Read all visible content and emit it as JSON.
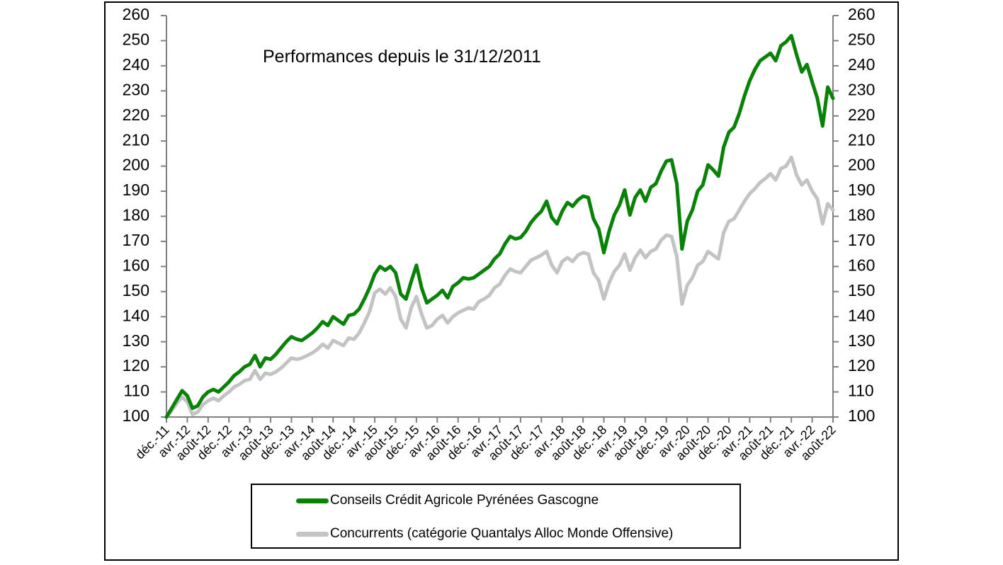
{
  "title": "Performances depuis le 31/12/2011",
  "colors": {
    "series1": "#078207",
    "series2": "#c3c3c3",
    "axis": "#808080",
    "text": "#000000",
    "frame_border": "#000000"
  },
  "chart_data": {
    "type": "line",
    "title": "Performances depuis le 31/12/2011",
    "xlabel": "",
    "ylabel": "",
    "ylim": [
      100,
      260
    ],
    "y_tick_step": 10,
    "grid": false,
    "legend_position": "bottom-box",
    "x_months_per_tick": 4,
    "x_tick_labels": [
      "déc.-11",
      "avr.-12",
      "août-12",
      "déc.-12",
      "avr.-13",
      "août-13",
      "déc.-13",
      "avr.-14",
      "août-14",
      "déc.-14",
      "avr.-15",
      "août-15",
      "déc.-15",
      "avr.-16",
      "août-16",
      "déc.-16",
      "avr.-17",
      "août-17",
      "déc.-17",
      "avr.-18",
      "août-18",
      "déc.-18",
      "avr.-19",
      "août-19",
      "déc.-19",
      "avr.-20",
      "août-20",
      "déc.-20",
      "avr.-21",
      "août-21",
      "déc.-21",
      "avr.-22",
      "août-22"
    ],
    "y_tick_labels": [
      100,
      110,
      120,
      130,
      140,
      150,
      160,
      170,
      180,
      190,
      200,
      210,
      220,
      230,
      240,
      250,
      260
    ],
    "series": [
      {
        "name": "Conseils Crédit Agricole Pyrénées Gascogne",
        "color": "#078207",
        "values": [
          100,
          103.5,
          107,
          110.5,
          108.5,
          103.5,
          104.5,
          108,
          110,
          111,
          110,
          112,
          114,
          116.5,
          118,
          120,
          121,
          124.5,
          120,
          123.5,
          123,
          125,
          127.5,
          130,
          132,
          131,
          130.5,
          132,
          133.5,
          135.5,
          138,
          136.5,
          140,
          138.5,
          137,
          140.5,
          141,
          143,
          147,
          151.5,
          157,
          160,
          158.5,
          160,
          157.5,
          149,
          147,
          154,
          160.5,
          151.5,
          145.5,
          147,
          148.5,
          150.5,
          147.5,
          152,
          153.5,
          155.5,
          155,
          155.5,
          157,
          158.5,
          160,
          163,
          165,
          169,
          172,
          171,
          171.5,
          174,
          177.5,
          180,
          182,
          186,
          179.5,
          177,
          182,
          185.5,
          184,
          186.5,
          188,
          187.5,
          179,
          175,
          165.5,
          174,
          180.5,
          184.5,
          190.5,
          180.5,
          187.5,
          190.5,
          186,
          191.5,
          193,
          198,
          202,
          202.5,
          193,
          167,
          178,
          182.5,
          190,
          192.5,
          200.5,
          198.5,
          196,
          207.5,
          213.5,
          215.5,
          221,
          228,
          234,
          238.5,
          242,
          243.5,
          245,
          242,
          248,
          249.5,
          252,
          244.5,
          237.5,
          240.5,
          233.5,
          227,
          216,
          231.5,
          227
        ]
      },
      {
        "name": "Concurrents (catégorie Quantalys Alloc Monde Offensive)",
        "color": "#c3c3c3",
        "values": [
          100,
          102.5,
          105.5,
          108,
          106,
          101,
          102,
          105,
          106.5,
          107.5,
          106.5,
          108.5,
          110,
          112,
          113,
          114.5,
          115,
          118.5,
          115,
          117.5,
          117,
          118,
          119.5,
          121.5,
          123.5,
          123,
          123.5,
          124.5,
          125.5,
          127,
          129,
          127.5,
          130.5,
          129.5,
          128.5,
          131.5,
          131,
          133.5,
          137.5,
          142,
          149.5,
          151,
          149,
          151.5,
          148,
          139,
          135.5,
          143.5,
          148,
          141,
          135.5,
          136.5,
          139,
          140.5,
          137.5,
          140,
          141.5,
          142.5,
          143.5,
          143,
          146,
          147,
          148.5,
          151.5,
          153,
          156.5,
          159,
          158,
          157.5,
          160,
          162.5,
          163.5,
          164.5,
          166,
          160.5,
          157.5,
          162,
          163.5,
          162,
          164.5,
          165.5,
          165,
          157.5,
          154.5,
          147,
          153.5,
          158,
          160.5,
          165,
          158.5,
          163.5,
          166.5,
          163.5,
          166,
          167,
          170.5,
          172.5,
          172,
          164,
          145,
          152.5,
          155.5,
          160.5,
          162,
          166,
          164.5,
          163,
          173.5,
          178,
          179,
          182.5,
          186,
          189,
          191,
          193.5,
          195,
          197,
          194.5,
          199,
          200,
          203.5,
          196.5,
          192.5,
          194.5,
          190,
          187,
          177,
          185,
          182.5
        ]
      }
    ]
  }
}
